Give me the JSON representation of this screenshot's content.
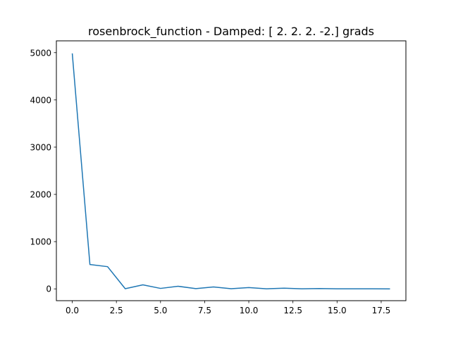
{
  "chart_data": {
    "type": "line",
    "title": "rosenbrock_function - Damped: [ 2.  2.  2. -2.] grads",
    "xlabel": "",
    "ylabel": "",
    "xlim": [
      -0.9,
      18.9
    ],
    "ylim": [
      -250,
      5250
    ],
    "xticks": [
      0.0,
      2.5,
      5.0,
      7.5,
      10.0,
      12.5,
      15.0,
      17.5
    ],
    "xtick_labels": [
      "0.0",
      "2.5",
      "5.0",
      "7.5",
      "10.0",
      "12.5",
      "15.0",
      "17.5"
    ],
    "yticks": [
      0,
      1000,
      2000,
      3000,
      4000,
      5000
    ],
    "ytick_labels": [
      "0",
      "1000",
      "2000",
      "3000",
      "4000",
      "5000"
    ],
    "grid": false,
    "series": [
      {
        "color": "#1f77b4",
        "x": [
          0,
          1,
          2,
          3,
          4,
          5,
          6,
          7,
          8,
          9,
          10,
          11,
          12,
          13,
          14,
          15,
          16,
          17,
          18
        ],
        "y": [
          4985,
          515,
          470,
          3,
          85,
          10,
          55,
          5,
          40,
          3,
          28,
          2,
          15,
          1,
          8,
          1,
          2,
          1,
          0
        ]
      }
    ]
  }
}
